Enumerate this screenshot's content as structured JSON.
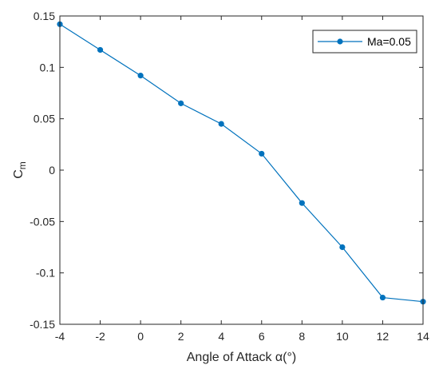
{
  "chart_data": {
    "type": "line",
    "xlabel": "Angle of Attack α(°)",
    "ylabel_main": "C",
    "ylabel_sub": "m",
    "xlim": [
      -4,
      14
    ],
    "ylim": [
      -0.15,
      0.15
    ],
    "x_ticks": [
      -4,
      -2,
      0,
      2,
      4,
      6,
      8,
      10,
      12,
      14
    ],
    "x_tick_labels": [
      "-4",
      "-2",
      "0",
      "2",
      "4",
      "6",
      "8",
      "10",
      "12",
      "14"
    ],
    "y_ticks": [
      -0.15,
      -0.1,
      -0.05,
      0,
      0.05,
      0.1,
      0.15
    ],
    "y_tick_labels": [
      "-0.15",
      "-0.1",
      "-0.05",
      "0",
      "0.05",
      "0.1",
      "0.15"
    ],
    "grid": false,
    "legend_position": "top-right",
    "series": [
      {
        "name": "Ma=0.05",
        "color": "#0072BD",
        "marker": "circle",
        "x": [
          -4,
          -2,
          0,
          2,
          4,
          6,
          8,
          10,
          12,
          14
        ],
        "y": [
          0.142,
          0.117,
          0.092,
          0.065,
          0.045,
          0.016,
          -0.032,
          -0.075,
          -0.124,
          -0.128
        ]
      }
    ]
  }
}
